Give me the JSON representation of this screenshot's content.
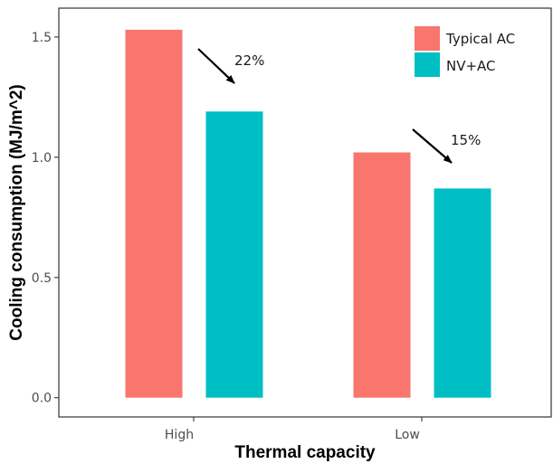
{
  "chart_data": {
    "type": "bar",
    "title": "",
    "xlabel": "Thermal capacity",
    "ylabel": "Cooling consumption (MJ/m^2)",
    "categories": [
      "High",
      "Low"
    ],
    "series": [
      {
        "name": "Typical AC",
        "color": "#f8766d",
        "values": [
          1.53,
          1.02
        ]
      },
      {
        "name": "NV+AC",
        "color": "#00bfc4",
        "values": [
          1.19,
          0.87
        ]
      }
    ],
    "yticks": [
      "0.0",
      "0.5",
      "1.0",
      "1.5"
    ],
    "ylim": [
      -0.08,
      1.62
    ],
    "grid": false,
    "legend_position": "top-right",
    "annotations": [
      {
        "text": "22%",
        "category": "High"
      },
      {
        "text": "15%",
        "category": "Low"
      }
    ]
  }
}
